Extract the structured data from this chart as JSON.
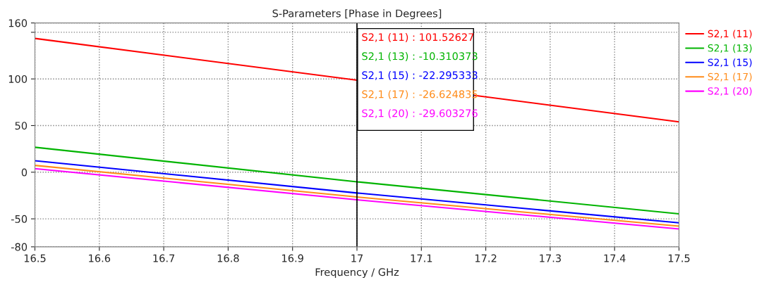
{
  "chart_data": {
    "type": "line",
    "title": "S-Parameters [Phase in Degrees]",
    "xlabel": "Frequency / GHz",
    "x": [
      16.5,
      17,
      17.5
    ],
    "series": [
      {
        "name": "S2,1 (11)",
        "color": "#ff0000",
        "x": [
          16.5,
          17.5
        ],
        "values": [
          143.4,
          53.9
        ]
      },
      {
        "name": "S2,1 (13)",
        "color": "#00b400",
        "values": [
          26.7,
          -10.3,
          -44.6
        ]
      },
      {
        "name": "S2,1 (15)",
        "color": "#0000ff",
        "values": [
          12.3,
          -22.3,
          -54.2
        ]
      },
      {
        "name": "S2,1 (17)",
        "color": "#ff8c1a",
        "values": [
          7.3,
          -26.6,
          -57.8
        ]
      },
      {
        "name": "S2,1 (20)",
        "color": "#ff00ff",
        "values": [
          3.8,
          -29.6,
          -60.8
        ]
      }
    ],
    "annotations": [
      "S2,1 (11) : 101.52627",
      "S2,1 (13) : -10.310373",
      "S2,1 (15) : -22.295333",
      "S2,1 (17) : -26.624835",
      "S2,1 (20) : -29.603276"
    ],
    "ref_lines": [
      {
        "axis": "x",
        "value": 17,
        "color": "#000000"
      }
    ],
    "xlim": [
      16.5,
      17.5
    ],
    "xticks": [
      16.5,
      16.6,
      16.7,
      16.8,
      16.9,
      17,
      17.1,
      17.2,
      17.3,
      17.4,
      17.5
    ],
    "ylim": [
      -80,
      160
    ],
    "yticks": [
      -80,
      -50,
      0,
      50,
      100,
      {
        "value": 150,
        "label": null
      },
      160
    ],
    "grid": true,
    "legend": "top right",
    "marker": "none",
    "line_style": "solid"
  }
}
